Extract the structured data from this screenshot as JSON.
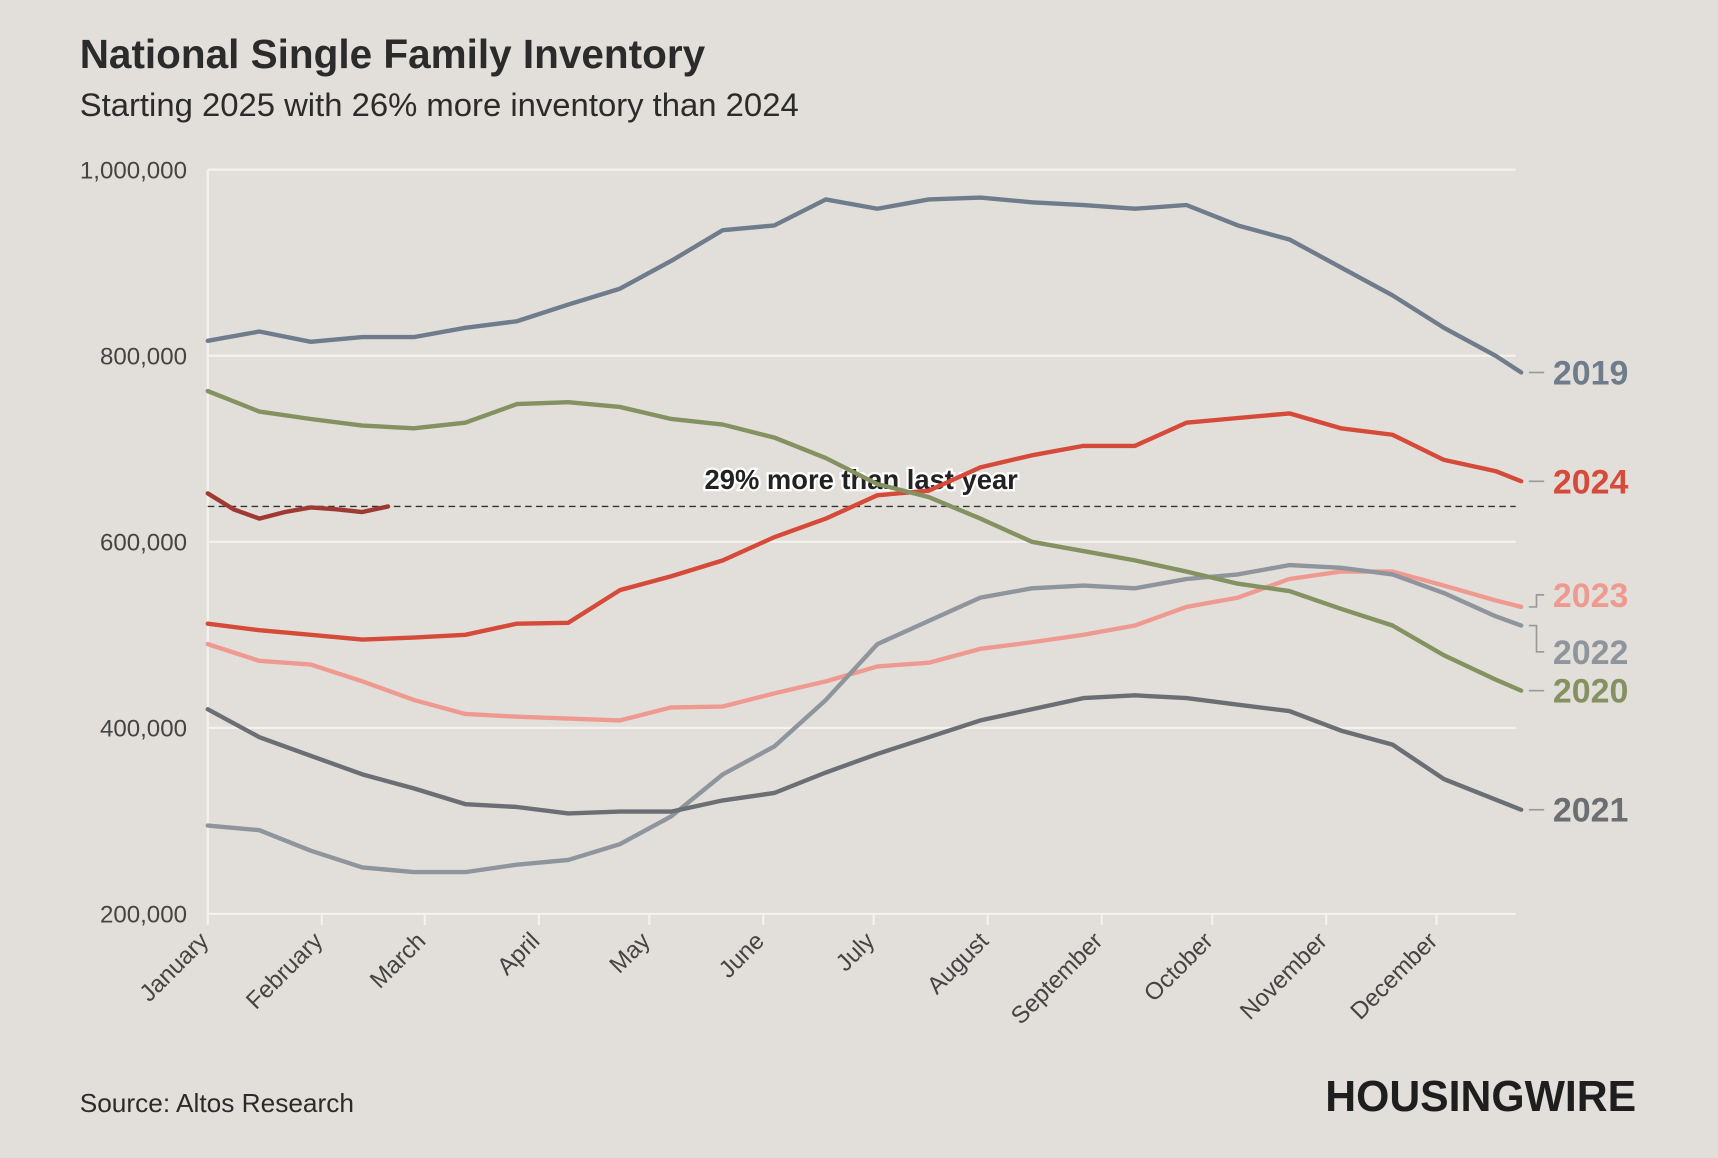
{
  "chart_data": {
    "type": "line",
    "title": "National Single Family Inventory",
    "subtitle": "Starting 2025 with 26% more inventory than 2024",
    "source": "Source: Altos Research",
    "logo": "HOUSINGWIRE",
    "x": [
      0,
      14,
      28,
      42,
      56,
      70,
      84,
      98,
      112,
      126,
      140,
      154,
      168,
      182,
      196,
      210,
      224,
      238,
      252,
      266,
      280,
      294,
      308,
      322,
      336,
      350,
      357
    ],
    "xlim": [
      0,
      357
    ],
    "xticks": [
      {
        "value": 0,
        "label": "January"
      },
      {
        "value": 31,
        "label": "February"
      },
      {
        "value": 59,
        "label": "March"
      },
      {
        "value": 90,
        "label": "April"
      },
      {
        "value": 120,
        "label": "May"
      },
      {
        "value": 151,
        "label": "June"
      },
      {
        "value": 181,
        "label": "July"
      },
      {
        "value": 212,
        "label": "August"
      },
      {
        "value": 243,
        "label": "September"
      },
      {
        "value": 273,
        "label": "October"
      },
      {
        "value": 304,
        "label": "November"
      },
      {
        "value": 334,
        "label": "December"
      }
    ],
    "ylim": [
      200000,
      1000000
    ],
    "yticks": [
      {
        "value": 200000,
        "label": "200,000"
      },
      {
        "value": 400000,
        "label": "400,000"
      },
      {
        "value": 600000,
        "label": "600,000"
      },
      {
        "value": 800000,
        "label": "800,000"
      },
      {
        "value": 1000000,
        "label": "1,000,000"
      }
    ],
    "grid": true,
    "reference_line": {
      "value": 638000,
      "label": "29% more than last year"
    },
    "series": [
      {
        "name": "2019",
        "color": "#6f7c8c",
        "values": [
          816000,
          826000,
          815000,
          820000,
          820000,
          830000,
          837000,
          855000,
          872000,
          902000,
          935000,
          940000,
          968000,
          958000,
          968000,
          970000,
          965000,
          962000,
          958000,
          962000,
          940000,
          925000,
          895000,
          865000,
          830000,
          800000,
          782000
        ]
      },
      {
        "name": "2024",
        "color": "#d64a3a",
        "values": [
          512000,
          505000,
          500000,
          495000,
          497000,
          500000,
          512000,
          513000,
          548000,
          563000,
          580000,
          605000,
          625000,
          650000,
          655000,
          680000,
          693000,
          703000,
          703000,
          728000,
          733000,
          738000,
          722000,
          715000,
          688000,
          676000,
          665000
        ]
      },
      {
        "name": "2023",
        "color": "#ef9a90",
        "values": [
          490000,
          472000,
          468000,
          450000,
          430000,
          415000,
          412000,
          410000,
          408000,
          422000,
          423000,
          437000,
          450000,
          466000,
          470000,
          485000,
          492000,
          500000,
          510000,
          530000,
          540000,
          560000,
          568000,
          568000,
          553000,
          537000,
          530000
        ]
      },
      {
        "name": "2022",
        "color": "#8e959c",
        "values": [
          295000,
          290000,
          268000,
          250000,
          245000,
          245000,
          253000,
          258000,
          275000,
          305000,
          350000,
          380000,
          430000,
          490000,
          515000,
          540000,
          550000,
          553000,
          550000,
          560000,
          565000,
          575000,
          572000,
          565000,
          545000,
          520000,
          510000
        ]
      },
      {
        "name": "2020",
        "color": "#849261",
        "values": [
          762000,
          740000,
          732000,
          725000,
          722000,
          728000,
          748000,
          750000,
          745000,
          732000,
          726000,
          712000,
          690000,
          662000,
          648000,
          625000,
          600000,
          590000,
          580000,
          568000,
          555000,
          547000,
          528000,
          510000,
          478000,
          452000,
          440000
        ]
      },
      {
        "name": "2021",
        "color": "#6b6e73",
        "values": [
          420000,
          390000,
          370000,
          350000,
          335000,
          318000,
          315000,
          308000,
          310000,
          310000,
          322000,
          330000,
          352000,
          372000,
          390000,
          408000,
          420000,
          432000,
          435000,
          432000,
          425000,
          418000,
          397000,
          382000,
          345000,
          323000,
          312000
        ]
      },
      {
        "color": "#9e3a33",
        "x": [
          0,
          7,
          14,
          21,
          28,
          35,
          42,
          49
        ],
        "values": [
          652000,
          635000,
          625000,
          632000,
          637000,
          635000,
          632000,
          638000
        ]
      }
    ]
  }
}
